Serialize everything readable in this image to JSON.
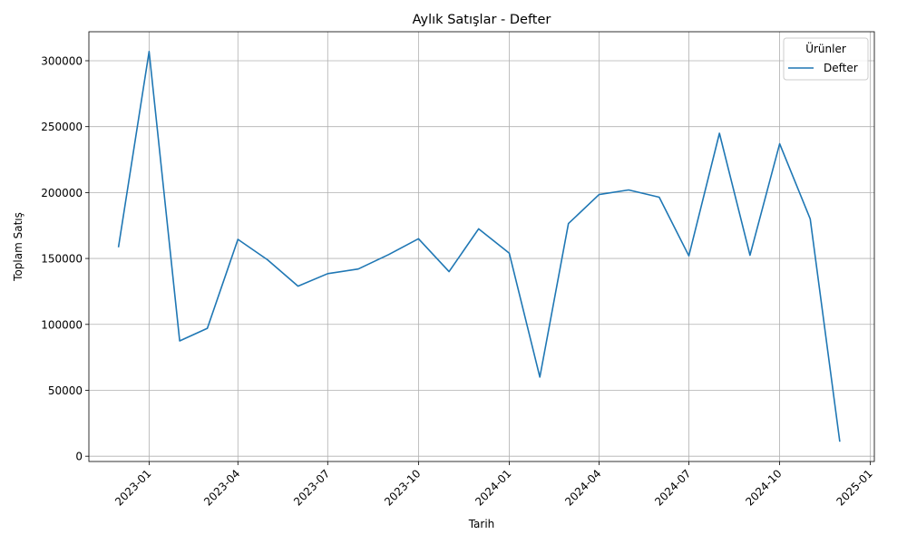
{
  "chart_data": {
    "type": "line",
    "title": "Aylık Satışlar - Defter",
    "xlabel": "Tarih",
    "ylabel": "Toplam Satış",
    "x": [
      "2022-12-01",
      "2023-01-01",
      "2023-02-01",
      "2023-03-01",
      "2023-04-01",
      "2023-05-01",
      "2023-06-01",
      "2023-07-01",
      "2023-08-01",
      "2023-09-01",
      "2023-10-01",
      "2023-11-01",
      "2023-12-01",
      "2024-01-01",
      "2024-02-01",
      "2024-03-01",
      "2024-04-01",
      "2024-05-01",
      "2024-06-01",
      "2024-07-01",
      "2024-08-01",
      "2024-09-01",
      "2024-10-01",
      "2024-11-01",
      "2024-12-01"
    ],
    "series": [
      {
        "name": "Defter",
        "color": "#1f77b4",
        "values": [
          158500,
          307000,
          87500,
          97000,
          164500,
          149000,
          129000,
          138500,
          142000,
          153000,
          165000,
          140000,
          172500,
          154000,
          60000,
          176500,
          198500,
          202000,
          196500,
          152000,
          245000,
          152500,
          237000,
          180000,
          11000
        ]
      }
    ],
    "xlim": [
      "2022-11-01",
      "2025-01-05"
    ],
    "ylim": [
      -4000,
      322000
    ],
    "x_ticks": [
      "2023-01",
      "2023-04",
      "2023-07",
      "2023-10",
      "2024-01",
      "2024-04",
      "2024-07",
      "2024-10",
      "2025-01"
    ],
    "y_ticks": [
      0,
      50000,
      100000,
      150000,
      200000,
      250000,
      300000
    ],
    "grid": true,
    "legend": {
      "title": "Ürünler",
      "placement": "top-right"
    }
  }
}
